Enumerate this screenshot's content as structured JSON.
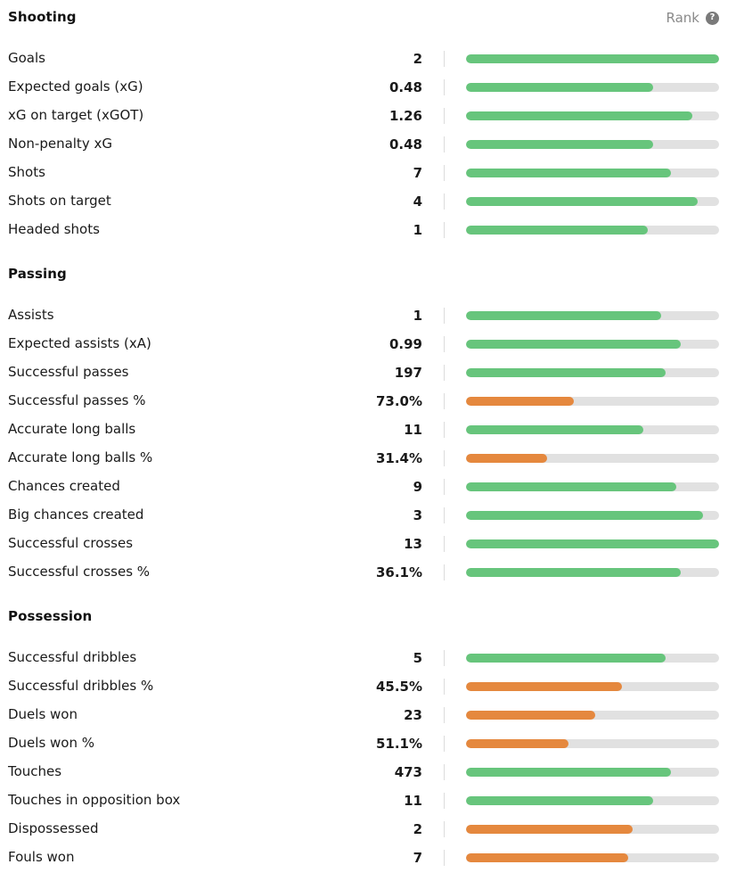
{
  "colors": {
    "good": "#67c57c",
    "poor": "#e5883e",
    "track": "#e1e1e1"
  },
  "rank": {
    "label": "Rank",
    "help_icon": "?"
  },
  "sections": [
    {
      "title": "Shooting",
      "rows": [
        {
          "label": "Goals",
          "value": "2",
          "rank": 1.0,
          "tier": "good"
        },
        {
          "label": "Expected goals (xG)",
          "value": "0.48",
          "rank": 0.74,
          "tier": "good"
        },
        {
          "label": "xG on target (xGOT)",
          "value": "1.26",
          "rank": 0.895,
          "tier": "good"
        },
        {
          "label": "Non-penalty xG",
          "value": "0.48",
          "rank": 0.74,
          "tier": "good"
        },
        {
          "label": "Shots",
          "value": "7",
          "rank": 0.81,
          "tier": "good"
        },
        {
          "label": "Shots on target",
          "value": "4",
          "rank": 0.915,
          "tier": "good"
        },
        {
          "label": "Headed shots",
          "value": "1",
          "rank": 0.72,
          "tier": "good"
        }
      ]
    },
    {
      "title": "Passing",
      "rows": [
        {
          "label": "Assists",
          "value": "1",
          "rank": 0.77,
          "tier": "good"
        },
        {
          "label": "Expected assists (xA)",
          "value": "0.99",
          "rank": 0.85,
          "tier": "good"
        },
        {
          "label": "Successful passes",
          "value": "197",
          "rank": 0.79,
          "tier": "good"
        },
        {
          "label": "Successful passes %",
          "value": "73.0%",
          "rank": 0.425,
          "tier": "poor"
        },
        {
          "label": "Accurate long balls",
          "value": "11",
          "rank": 0.7,
          "tier": "good"
        },
        {
          "label": "Accurate long balls %",
          "value": "31.4%",
          "rank": 0.32,
          "tier": "poor"
        },
        {
          "label": "Chances created",
          "value": "9",
          "rank": 0.83,
          "tier": "good"
        },
        {
          "label": "Big chances created",
          "value": "3",
          "rank": 0.935,
          "tier": "good"
        },
        {
          "label": "Successful crosses",
          "value": "13",
          "rank": 1.0,
          "tier": "good"
        },
        {
          "label": "Successful crosses %",
          "value": "36.1%",
          "rank": 0.85,
          "tier": "good"
        }
      ]
    },
    {
      "title": "Possession",
      "rows": [
        {
          "label": "Successful dribbles",
          "value": "5",
          "rank": 0.79,
          "tier": "good"
        },
        {
          "label": "Successful dribbles %",
          "value": "45.5%",
          "rank": 0.615,
          "tier": "poor"
        },
        {
          "label": "Duels won",
          "value": "23",
          "rank": 0.51,
          "tier": "poor"
        },
        {
          "label": "Duels won %",
          "value": "51.1%",
          "rank": 0.405,
          "tier": "poor"
        },
        {
          "label": "Touches",
          "value": "473",
          "rank": 0.81,
          "tier": "good"
        },
        {
          "label": "Touches in opposition box",
          "value": "11",
          "rank": 0.74,
          "tier": "good"
        },
        {
          "label": "Dispossessed",
          "value": "2",
          "rank": 0.66,
          "tier": "poor"
        },
        {
          "label": "Fouls won",
          "value": "7",
          "rank": 0.64,
          "tier": "poor"
        }
      ]
    }
  ]
}
